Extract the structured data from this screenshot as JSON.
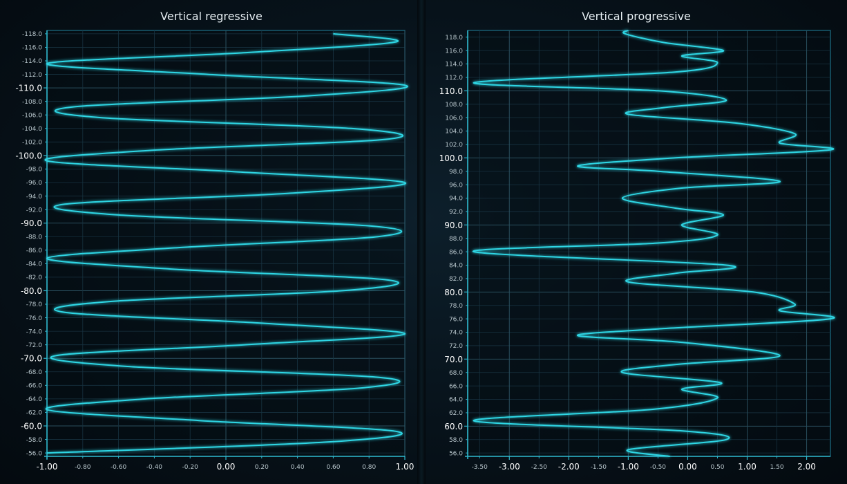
{
  "chart_data": [
    {
      "type": "line",
      "title": "Vertical regressive",
      "orientation": "vertical",
      "x_range": [
        -1.0,
        1.0
      ],
      "y_range": [
        -55.5,
        -118.5
      ],
      "y_reversed": true,
      "x_major_ticks": [
        "-1.00",
        "0.00",
        "1.00"
      ],
      "x_minor_ticks": [
        "-0.80",
        "-0.60",
        "-0.40",
        "-0.20",
        "0.20",
        "0.40",
        "0.60",
        "0.80"
      ],
      "x_major_values": [
        -1.0,
        0.0,
        1.0
      ],
      "x_minor_values": [
        -0.8,
        -0.6,
        -0.4,
        -0.2,
        0.2,
        0.4,
        0.6,
        0.8
      ],
      "y_major_ticks": [
        "-60.0",
        "-70.0",
        "-80.0",
        "-90.0",
        "-100.0",
        "-110.0"
      ],
      "y_major_values": [
        -60,
        -70,
        -80,
        -90,
        -100,
        -110
      ],
      "y_minor_ticks": [
        "-56.0",
        "-58.0",
        "-62.0",
        "-64.0",
        "-66.0",
        "-68.0",
        "-72.0",
        "-74.0",
        "-76.0",
        "-78.0",
        "-82.0",
        "-84.0",
        "-86.0",
        "-88.0",
        "-92.0",
        "-94.0",
        "-96.0",
        "-98.0",
        "-102.0",
        "-104.0",
        "-106.0",
        "-108.0",
        "-112.0",
        "-114.0",
        "-116.0",
        "-118.0"
      ],
      "y_minor_values": [
        -56,
        -58,
        -62,
        -64,
        -66,
        -68,
        -72,
        -74,
        -76,
        -78,
        -82,
        -84,
        -86,
        -88,
        -92,
        -94,
        -96,
        -98,
        -102,
        -104,
        -106,
        -108,
        -112,
        -114,
        -116,
        -118
      ],
      "series": [
        {
          "color": "#2fd6e4",
          "y": [
            -56.0,
            -57.6,
            -59.2,
            -60.8,
            -62.4,
            -64.0,
            -65.6,
            -67.2,
            -68.8,
            -70.4,
            -72.0,
            -73.6,
            -75.2,
            -76.8,
            -78.4,
            -80.0,
            -81.6,
            -83.2,
            -84.8,
            -86.4,
            -88.0,
            -89.6,
            -91.2,
            -92.8,
            -94.4,
            -96.0,
            -97.6,
            -99.2,
            -100.8,
            -102.4,
            -104.0,
            -105.6,
            -107.2,
            -108.8,
            -110.4,
            -112.0,
            -113.6,
            -115.2,
            -116.8,
            -118.0
          ],
          "x": [
            -1.0,
            0.55,
            0.95,
            -0.15,
            -1.0,
            -0.45,
            0.75,
            0.85,
            -0.55,
            -0.95,
            0.1,
            1.0,
            0.2,
            -0.9,
            -0.65,
            0.65,
            0.9,
            -0.3,
            -1.0,
            -0.25,
            0.85,
            0.8,
            -0.6,
            -0.9,
            0.35,
            1.0,
            0.05,
            -1.0,
            -0.4,
            0.9,
            0.7,
            -0.7,
            -0.85,
            0.45,
            1.0,
            -0.1,
            -1.0,
            0.1,
            0.95,
            0.6
          ]
        }
      ]
    },
    {
      "type": "line",
      "title": "Vertical progressive",
      "orientation": "vertical",
      "x_range": [
        -3.7,
        2.4
      ],
      "y_range": [
        55.5,
        119.0
      ],
      "x_major_ticks": [
        "-3.00",
        "-2.00",
        "-1.00",
        "0.00",
        "1.00",
        "2.00"
      ],
      "x_major_values": [
        -3,
        -2,
        -1,
        0,
        1,
        2
      ],
      "x_minor_ticks": [
        "-3.50",
        "-2.50",
        "-1.50",
        "-0.50",
        "0.50",
        "1.50"
      ],
      "x_minor_values": [
        -3.5,
        -2.5,
        -1.5,
        -0.5,
        0.5,
        1.5
      ],
      "y_major_ticks": [
        "60.0",
        "70.0",
        "80.0",
        "90.0",
        "100.0",
        "110.0"
      ],
      "y_major_values": [
        60,
        70,
        80,
        90,
        100,
        110
      ],
      "y_minor_ticks": [
        "56.0",
        "58.0",
        "62.0",
        "64.0",
        "66.0",
        "68.0",
        "72.0",
        "74.0",
        "76.0",
        "78.0",
        "82.0",
        "84.0",
        "86.0",
        "88.0",
        "92.0",
        "94.0",
        "96.0",
        "98.0",
        "102.0",
        "104.0",
        "106.0",
        "108.0",
        "112.0",
        "114.0",
        "116.0",
        "118.0"
      ],
      "y_minor_values": [
        56,
        58,
        62,
        64,
        66,
        68,
        72,
        74,
        76,
        78,
        82,
        84,
        86,
        88,
        92,
        94,
        96,
        98,
        102,
        104,
        106,
        108,
        112,
        114,
        116,
        118
      ],
      "series": [
        {
          "color": "#2fd6e4",
          "y": [
            55.5,
            56.5,
            58.0,
            59.3,
            60.8,
            62.5,
            64.2,
            65.5,
            66.5,
            68.0,
            69.2,
            70.5,
            72.5,
            73.5,
            74.5,
            76.0,
            77.2,
            78.2,
            80.0,
            81.5,
            82.8,
            84.0,
            86.0,
            87.3,
            88.5,
            90.0,
            91.5,
            92.5,
            94.0,
            95.5,
            96.5,
            98.0,
            98.8,
            100.0,
            101.2,
            102.2,
            103.6,
            105.2,
            106.5,
            107.5,
            108.6,
            110.0,
            111.2,
            112.8,
            114.2,
            115.2,
            116.0,
            117.2,
            118.5,
            119.0
          ],
          "x": [
            -0.3,
            -1.0,
            0.65,
            -0.1,
            -3.6,
            -0.6,
            0.5,
            -0.1,
            0.55,
            -1.1,
            -0.2,
            1.55,
            -0.1,
            -1.85,
            -0.5,
            2.4,
            1.55,
            1.8,
            1.1,
            -1.0,
            -0.2,
            0.65,
            -3.6,
            -0.5,
            0.5,
            -0.1,
            0.6,
            -0.2,
            -1.1,
            -0.1,
            1.55,
            -0.5,
            -1.85,
            -0.2,
            2.4,
            1.55,
            1.8,
            0.8,
            -1.0,
            -0.4,
            0.65,
            -0.5,
            -3.6,
            -0.2,
            0.5,
            -0.1,
            0.6,
            -0.4,
            -1.05,
            -1.0
          ]
        }
      ]
    }
  ]
}
